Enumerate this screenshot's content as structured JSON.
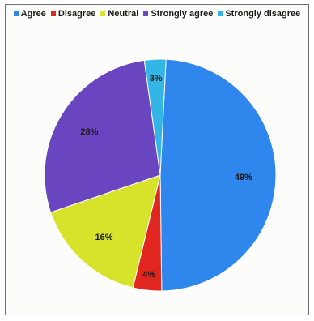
{
  "chart_data": {
    "type": "pie",
    "title": "",
    "legend_placement": "top",
    "slices": [
      {
        "name": "Agree",
        "value": 49,
        "label": "49%",
        "color": "#2f86ec"
      },
      {
        "name": "Disagree",
        "value": 4,
        "label": "4%",
        "color": "#e0261e"
      },
      {
        "name": "Neutral",
        "value": 16,
        "label": "16%",
        "color": "#d7e22a"
      },
      {
        "name": "Strongly agree",
        "value": 28,
        "label": "28%",
        "color": "#6a45c0"
      },
      {
        "name": "Strongly disagree",
        "value": 3,
        "label": "3%",
        "color": "#33b6e6"
      }
    ]
  }
}
